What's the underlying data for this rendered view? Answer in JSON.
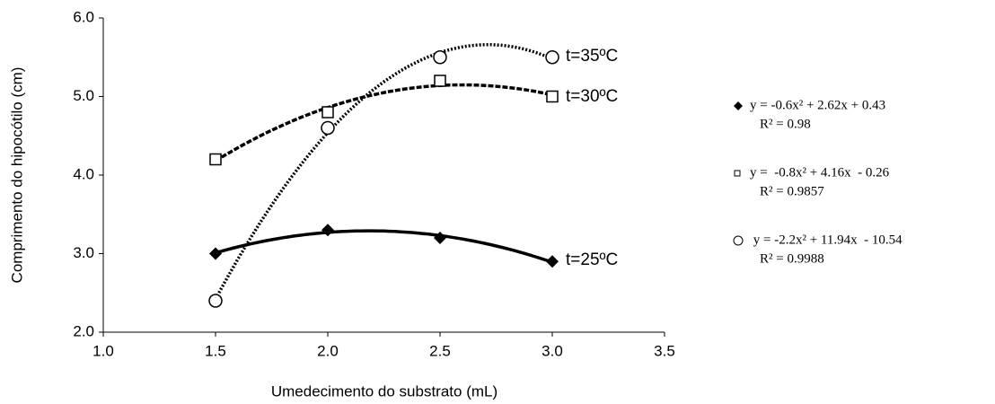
{
  "chart_data": {
    "type": "scatter",
    "x_label": "Umedecimento do substrato (mL)",
    "y_label": "Comprimento do hipocótilo (cm)",
    "x": [
      1.5,
      2.0,
      2.5,
      3.0
    ],
    "xlim": [
      1.0,
      3.5
    ],
    "xticks": [
      {
        "value": 1.0,
        "label": "1.0"
      },
      {
        "value": 1.5,
        "label": "1.5"
      },
      {
        "value": 2.0,
        "label": "2.0"
      },
      {
        "value": 2.5,
        "label": "2.5"
      },
      {
        "value": 3.0,
        "label": "3.0"
      },
      {
        "value": 3.5,
        "label": "3.5"
      }
    ],
    "ylim": [
      2.0,
      6.0
    ],
    "yticks": [
      {
        "value": 2.0,
        "label": "2.0"
      },
      {
        "value": 3.0,
        "label": "3.0"
      },
      {
        "value": 4.0,
        "label": "4.0"
      },
      {
        "value": 5.0,
        "label": "5.0"
      },
      {
        "value": 6.0,
        "label": "6.0"
      }
    ],
    "trendline": "polynomial-2",
    "series": [
      {
        "name": "t=25ºC",
        "color": "#000000",
        "marker": "diamond",
        "line_style": "solid",
        "values": [
          3.0,
          3.3,
          3.2,
          2.9
        ],
        "equation": "y = -0.6x² + 2.62x + 0.43",
        "r_squared": "R² = 0.98"
      },
      {
        "name": "t=30ºC",
        "color": "#000000",
        "marker": "square",
        "line_style": "dashed",
        "values": [
          4.2,
          4.8,
          5.2,
          5.0
        ],
        "equation": "y =  -0.8x² + 4.16x  - 0.26",
        "r_squared": "R² = 0.9857"
      },
      {
        "name": "t=35ºC",
        "color": "#000000",
        "marker": "circle",
        "line_style": "dotted",
        "values": [
          2.4,
          4.6,
          5.5,
          5.5
        ],
        "equation": " y = -2.2x² + 11.94x  - 10.54",
        "r_squared": "R² = 0.9988"
      }
    ]
  }
}
